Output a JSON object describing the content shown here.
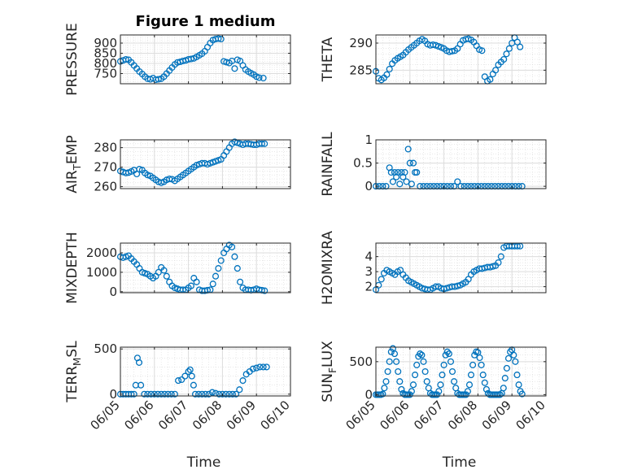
{
  "chart_data": [
    {
      "type": "scatter",
      "title": "Figure 1 medium",
      "ylabel": "PRESSURE",
      "xlabel": "",
      "ylim": [
        700,
        940
      ],
      "yticks": [
        750,
        800,
        850,
        900
      ],
      "xlim": [
        0,
        5
      ],
      "x": [
        0.0,
        0.08,
        0.16,
        0.24,
        0.32,
        0.4,
        0.48,
        0.56,
        0.64,
        0.72,
        0.8,
        0.88,
        0.96,
        1.04,
        1.12,
        1.2,
        1.28,
        1.36,
        1.44,
        1.52,
        1.6,
        1.68,
        1.76,
        1.84,
        1.92,
        2.0,
        2.08,
        2.16,
        2.24,
        2.32,
        2.4,
        2.48,
        2.56,
        2.64,
        2.72,
        2.8,
        2.88,
        2.96,
        3.04,
        3.12,
        3.2,
        3.28,
        3.36,
        3.44,
        3.52,
        3.6,
        3.68,
        3.76,
        3.84,
        3.92,
        4.0,
        4.08,
        4.2
      ],
      "values": [
        810,
        815,
        820,
        818,
        805,
        790,
        775,
        760,
        748,
        735,
        725,
        722,
        728,
        720,
        722,
        725,
        735,
        750,
        765,
        780,
        795,
        805,
        808,
        812,
        815,
        820,
        822,
        825,
        832,
        840,
        848,
        860,
        880,
        900,
        915,
        920,
        922,
        920,
        810,
        806,
        802,
        812,
        775,
        818,
        812,
        790,
        770,
        760,
        752,
        745,
        735,
        730,
        728
      ]
    },
    {
      "type": "scatter",
      "title": "",
      "ylabel": "THETA",
      "xlabel": "",
      "ylim": [
        282.5,
        291.5
      ],
      "yticks": [
        285,
        290
      ],
      "xlim": [
        0,
        5
      ],
      "x": [
        0.0,
        0.08,
        0.16,
        0.24,
        0.32,
        0.4,
        0.48,
        0.56,
        0.64,
        0.72,
        0.8,
        0.88,
        0.96,
        1.04,
        1.12,
        1.2,
        1.28,
        1.36,
        1.44,
        1.52,
        1.6,
        1.68,
        1.76,
        1.84,
        1.92,
        2.0,
        2.08,
        2.16,
        2.24,
        2.32,
        2.4,
        2.48,
        2.56,
        2.64,
        2.72,
        2.8,
        2.88,
        2.96,
        3.04,
        3.12,
        3.2,
        3.28,
        3.36,
        3.44,
        3.52,
        3.6,
        3.68,
        3.76,
        3.84,
        3.92,
        4.0,
        4.08,
        4.16,
        4.24
      ],
      "values": [
        284.8,
        283.5,
        283.2,
        283.6,
        284.2,
        285.2,
        286.2,
        286.8,
        287.2,
        287.5,
        287.8,
        288.3,
        288.8,
        289.2,
        289.6,
        290.0,
        290.4,
        290.7,
        290.4,
        289.8,
        289.6,
        289.7,
        289.6,
        289.4,
        289.2,
        289.0,
        288.6,
        288.4,
        288.5,
        288.6,
        289.0,
        289.8,
        290.5,
        290.7,
        290.8,
        290.6,
        290.2,
        289.5,
        288.8,
        288.6,
        283.8,
        283.0,
        283.3,
        284.3,
        285.0,
        286.0,
        286.5,
        287.0,
        288.0,
        289.0,
        290.0,
        291.0,
        290.2,
        289.3
      ]
    },
    {
      "type": "scatter",
      "title": "",
      "ylabel": "AIR_TEMP",
      "xlabel": "",
      "ylim": [
        259,
        284
      ],
      "yticks": [
        260,
        270,
        280
      ],
      "xlim": [
        0,
        5
      ],
      "x": [
        0.0,
        0.08,
        0.16,
        0.24,
        0.32,
        0.4,
        0.48,
        0.56,
        0.64,
        0.72,
        0.8,
        0.88,
        0.96,
        1.04,
        1.12,
        1.2,
        1.28,
        1.36,
        1.44,
        1.52,
        1.6,
        1.68,
        1.76,
        1.84,
        1.92,
        2.0,
        2.08,
        2.16,
        2.24,
        2.32,
        2.4,
        2.48,
        2.56,
        2.64,
        2.72,
        2.8,
        2.88,
        2.96,
        3.04,
        3.12,
        3.2,
        3.28,
        3.36,
        3.44,
        3.52,
        3.6,
        3.68,
        3.76,
        3.84,
        3.92,
        4.0,
        4.08,
        4.16,
        4.24
      ],
      "values": [
        268.0,
        267.5,
        267.0,
        267.2,
        267.8,
        268.5,
        266.5,
        269.0,
        268.5,
        267.0,
        266.0,
        265.5,
        264.5,
        263.5,
        262.5,
        262.0,
        262.5,
        263.5,
        264.0,
        263.8,
        263.0,
        264.0,
        265.0,
        266.0,
        267.0,
        268.0,
        269.0,
        270.0,
        271.0,
        271.5,
        272.0,
        272.0,
        271.5,
        272.0,
        272.5,
        273.0,
        273.5,
        274.0,
        276.0,
        278.0,
        280.0,
        282.0,
        283.0,
        282.5,
        282.0,
        281.5,
        282.0,
        282.0,
        281.8,
        281.5,
        281.5,
        282.0,
        282.0,
        282.0
      ]
    },
    {
      "type": "scatter",
      "title": "",
      "ylabel": "RAINFALL",
      "xlabel": "",
      "ylim": [
        -0.05,
        1.0
      ],
      "yticks": [
        0,
        0.5,
        1
      ],
      "xlim": [
        0,
        5
      ],
      "x": [
        0.0,
        0.1,
        0.2,
        0.3,
        0.4,
        0.45,
        0.5,
        0.55,
        0.6,
        0.65,
        0.7,
        0.75,
        0.8,
        0.85,
        0.9,
        0.95,
        1.0,
        1.05,
        1.1,
        1.15,
        1.2,
        1.3,
        1.4,
        1.5,
        1.6,
        1.7,
        1.8,
        1.9,
        2.0,
        2.1,
        2.2,
        2.3,
        2.4,
        2.5,
        2.6,
        2.7,
        2.8,
        2.9,
        3.0,
        3.1,
        3.2,
        3.3,
        3.4,
        3.5,
        3.6,
        3.7,
        3.8,
        3.9,
        4.0,
        4.1,
        4.2,
        4.3
      ],
      "values": [
        0,
        0,
        0,
        0,
        0.4,
        0.3,
        0.1,
        0.3,
        0.2,
        0.3,
        0.05,
        0.3,
        0.2,
        0.3,
        0.1,
        0.8,
        0.5,
        0.05,
        0.5,
        0.3,
        0.3,
        0,
        0,
        0,
        0,
        0,
        0,
        0,
        0,
        0,
        0,
        0,
        0.1,
        0,
        0,
        0,
        0,
        0,
        0,
        0,
        0,
        0,
        0,
        0,
        0,
        0,
        0,
        0,
        0,
        0,
        0,
        0
      ]
    },
    {
      "type": "scatter",
      "title": "",
      "ylabel": "MIXDEPTH",
      "xlabel": "",
      "ylim": [
        -50,
        2500
      ],
      "yticks": [
        0,
        1000,
        2000
      ],
      "xlim": [
        0,
        5
      ],
      "x": [
        0.0,
        0.08,
        0.16,
        0.24,
        0.32,
        0.4,
        0.48,
        0.56,
        0.64,
        0.72,
        0.8,
        0.88,
        0.96,
        1.04,
        1.12,
        1.2,
        1.28,
        1.36,
        1.44,
        1.52,
        1.6,
        1.68,
        1.76,
        1.84,
        1.92,
        2.0,
        2.08,
        2.16,
        2.24,
        2.32,
        2.4,
        2.48,
        2.56,
        2.64,
        2.72,
        2.8,
        2.88,
        2.96,
        3.04,
        3.12,
        3.2,
        3.28,
        3.36,
        3.44,
        3.52,
        3.6,
        3.68,
        3.76,
        3.84,
        3.92,
        4.0,
        4.08,
        4.16,
        4.24
      ],
      "values": [
        1800,
        1750,
        1800,
        1850,
        1700,
        1550,
        1400,
        1200,
        1000,
        950,
        900,
        800,
        700,
        800,
        1000,
        1250,
        1100,
        800,
        500,
        300,
        200,
        150,
        100,
        100,
        100,
        200,
        300,
        700,
        500,
        100,
        50,
        50,
        80,
        100,
        400,
        800,
        1200,
        1600,
        2000,
        2200,
        2400,
        2300,
        1800,
        1200,
        500,
        200,
        100,
        100,
        80,
        100,
        150,
        100,
        80,
        50
      ]
    },
    {
      "type": "scatter",
      "title": "",
      "ylabel": "H2OMIXRA",
      "xlabel": "",
      "ylim": [
        1.6,
        4.9
      ],
      "yticks": [
        2,
        3,
        4
      ],
      "xlim": [
        0,
        5
      ],
      "x": [
        0.0,
        0.08,
        0.16,
        0.24,
        0.32,
        0.4,
        0.48,
        0.56,
        0.64,
        0.72,
        0.8,
        0.88,
        0.96,
        1.04,
        1.12,
        1.2,
        1.28,
        1.36,
        1.44,
        1.52,
        1.6,
        1.68,
        1.76,
        1.84,
        1.92,
        2.0,
        2.08,
        2.16,
        2.24,
        2.32,
        2.4,
        2.48,
        2.56,
        2.64,
        2.72,
        2.8,
        2.88,
        2.96,
        3.04,
        3.12,
        3.2,
        3.28,
        3.36,
        3.44,
        3.52,
        3.6,
        3.68,
        3.76,
        3.84,
        3.92,
        4.0,
        4.08,
        4.16,
        4.24
      ],
      "values": [
        1.8,
        2.1,
        2.5,
        2.9,
        3.1,
        3.0,
        2.9,
        2.8,
        3.0,
        3.1,
        2.8,
        2.6,
        2.4,
        2.3,
        2.2,
        2.1,
        2.0,
        1.9,
        1.85,
        1.8,
        1.8,
        1.9,
        2.0,
        2.0,
        1.9,
        1.85,
        1.9,
        1.95,
        2.0,
        2.0,
        2.05,
        2.1,
        2.2,
        2.3,
        2.5,
        2.8,
        3.0,
        3.1,
        3.2,
        3.2,
        3.25,
        3.3,
        3.3,
        3.35,
        3.4,
        3.6,
        4.0,
        4.6,
        4.7,
        4.7,
        4.7,
        4.7,
        4.7,
        4.7
      ]
    },
    {
      "type": "scatter",
      "title": "",
      "ylabel": "TERR_MSL",
      "xlabel": "Time",
      "ylim": [
        -20,
        520
      ],
      "yticks": [
        0,
        500
      ],
      "xlim": [
        0,
        5
      ],
      "xticklabels": [
        "06/05",
        "06/06",
        "06/07",
        "06/08",
        "06/09",
        "06/10"
      ],
      "x": [
        0.0,
        0.08,
        0.16,
        0.24,
        0.32,
        0.4,
        0.45,
        0.5,
        0.55,
        0.6,
        0.7,
        0.8,
        0.9,
        1.0,
        1.1,
        1.2,
        1.3,
        1.4,
        1.5,
        1.6,
        1.7,
        1.8,
        1.9,
        2.0,
        2.05,
        2.1,
        2.15,
        2.2,
        2.3,
        2.4,
        2.5,
        2.6,
        2.7,
        2.8,
        2.9,
        3.0,
        3.1,
        3.2,
        3.3,
        3.4,
        3.5,
        3.6,
        3.7,
        3.8,
        3.9,
        4.0,
        4.1,
        4.2,
        4.3
      ],
      "values": [
        0,
        0,
        0,
        0,
        0,
        0,
        100,
        400,
        350,
        100,
        0,
        0,
        0,
        0,
        0,
        0,
        0,
        0,
        0,
        0,
        150,
        160,
        200,
        250,
        270,
        200,
        100,
        0,
        0,
        0,
        0,
        0,
        20,
        10,
        0,
        0,
        0,
        0,
        0,
        0,
        50,
        150,
        220,
        250,
        280,
        290,
        300,
        300,
        300
      ]
    },
    {
      "type": "scatter",
      "title": "",
      "ylabel": "SUN_FLUX",
      "xlabel": "Time",
      "ylim": [
        -20,
        720
      ],
      "yticks": [
        0,
        500
      ],
      "xlim": [
        0,
        5
      ],
      "xticklabels": [
        "06/05",
        "06/06",
        "06/07",
        "06/08",
        "06/09",
        "06/10"
      ],
      "x": [
        0.0,
        0.05,
        0.1,
        0.15,
        0.2,
        0.25,
        0.3,
        0.35,
        0.4,
        0.45,
        0.5,
        0.55,
        0.6,
        0.65,
        0.7,
        0.75,
        0.8,
        0.85,
        0.9,
        0.95,
        1.0,
        1.05,
        1.1,
        1.15,
        1.2,
        1.25,
        1.3,
        1.35,
        1.4,
        1.45,
        1.5,
        1.55,
        1.6,
        1.65,
        1.7,
        1.75,
        1.8,
        1.85,
        1.9,
        1.95,
        2.0,
        2.05,
        2.1,
        2.15,
        2.2,
        2.25,
        2.3,
        2.35,
        2.4,
        2.45,
        2.5,
        2.55,
        2.6,
        2.65,
        2.7,
        2.75,
        2.8,
        2.85,
        2.9,
        2.95,
        3.0,
        3.05,
        3.1,
        3.15,
        3.2,
        3.25,
        3.3,
        3.35,
        3.4,
        3.45,
        3.5,
        3.55,
        3.6,
        3.65,
        3.7,
        3.75,
        3.8,
        3.85,
        3.9,
        3.95,
        4.0,
        4.05,
        4.1,
        4.15,
        4.2,
        4.25,
        4.3
      ],
      "values": [
        0,
        0,
        0,
        0,
        10,
        100,
        200,
        350,
        500,
        650,
        700,
        620,
        500,
        350,
        200,
        80,
        20,
        0,
        0,
        0,
        0,
        50,
        150,
        300,
        450,
        580,
        620,
        600,
        500,
        350,
        200,
        100,
        20,
        0,
        0,
        0,
        0,
        50,
        150,
        300,
        450,
        600,
        650,
        620,
        500,
        350,
        200,
        100,
        20,
        0,
        0,
        0,
        0,
        0,
        50,
        150,
        300,
        450,
        600,
        650,
        640,
        560,
        450,
        300,
        180,
        80,
        20,
        0,
        0,
        0,
        0,
        0,
        0,
        0,
        20,
        100,
        250,
        400,
        550,
        650,
        680,
        600,
        500,
        300,
        150,
        50,
        10
      ]
    }
  ]
}
